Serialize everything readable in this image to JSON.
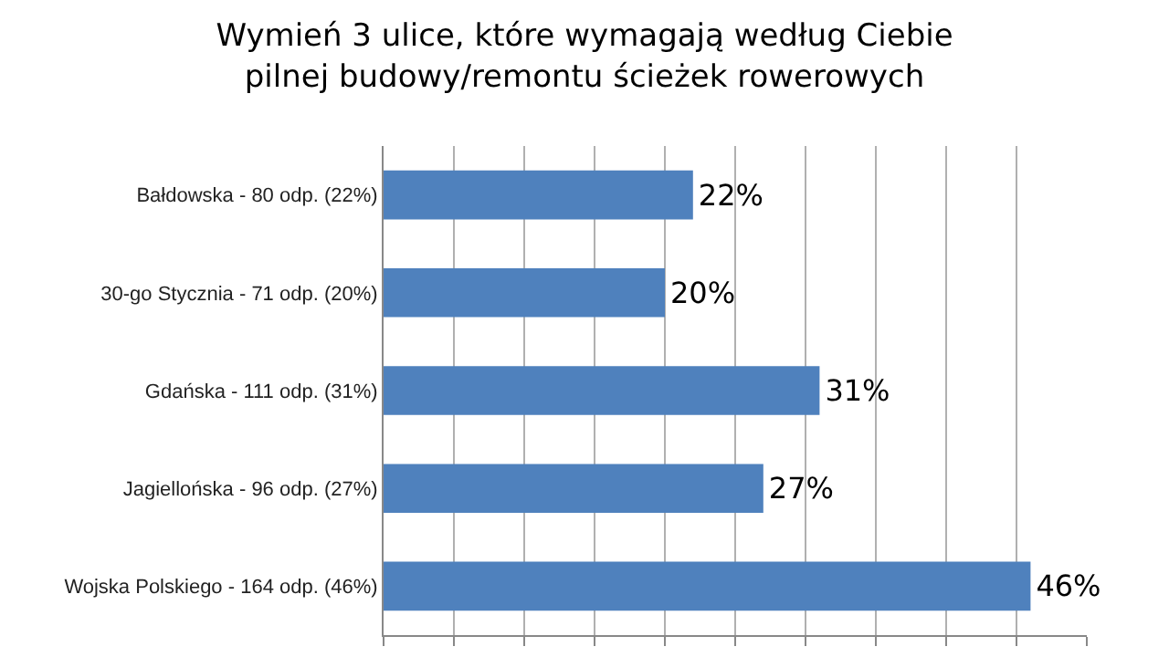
{
  "chart_data": {
    "type": "bar",
    "orientation": "horizontal",
    "title": "Wymień 3 ulice, które wymagają według Ciebie pilnej budowy/remontu ścieżek rowerowych",
    "categories": [
      "Bałdowska - 80 odp. (22%)",
      "30-go Stycznia - 71 odp. (20%)",
      "Gdańska - 111 odp. (31%)",
      "Jagiellońska - 96 odp. (27%)",
      "Wojska Polskiego - 164 odp. (46%)"
    ],
    "values": [
      22,
      20,
      31,
      27,
      46
    ],
    "value_labels": [
      "22%",
      "20%",
      "31%",
      "27%",
      "46%"
    ],
    "color": "#4f81bd",
    "xlim": [
      0,
      50
    ],
    "xticks": [
      {
        "value": 0,
        "label": null
      },
      {
        "value": 5,
        "label": null
      },
      {
        "value": 10,
        "label": null
      },
      {
        "value": 15,
        "label": null
      },
      {
        "value": 20,
        "label": null
      },
      {
        "value": 25,
        "label": null
      },
      {
        "value": 30,
        "label": null
      },
      {
        "value": 35,
        "label": null
      },
      {
        "value": 40,
        "label": null
      },
      {
        "value": 45,
        "label": null
      },
      {
        "value": 50,
        "label": null
      }
    ],
    "tick_labels": "y",
    "grid": "x",
    "legend": false
  }
}
